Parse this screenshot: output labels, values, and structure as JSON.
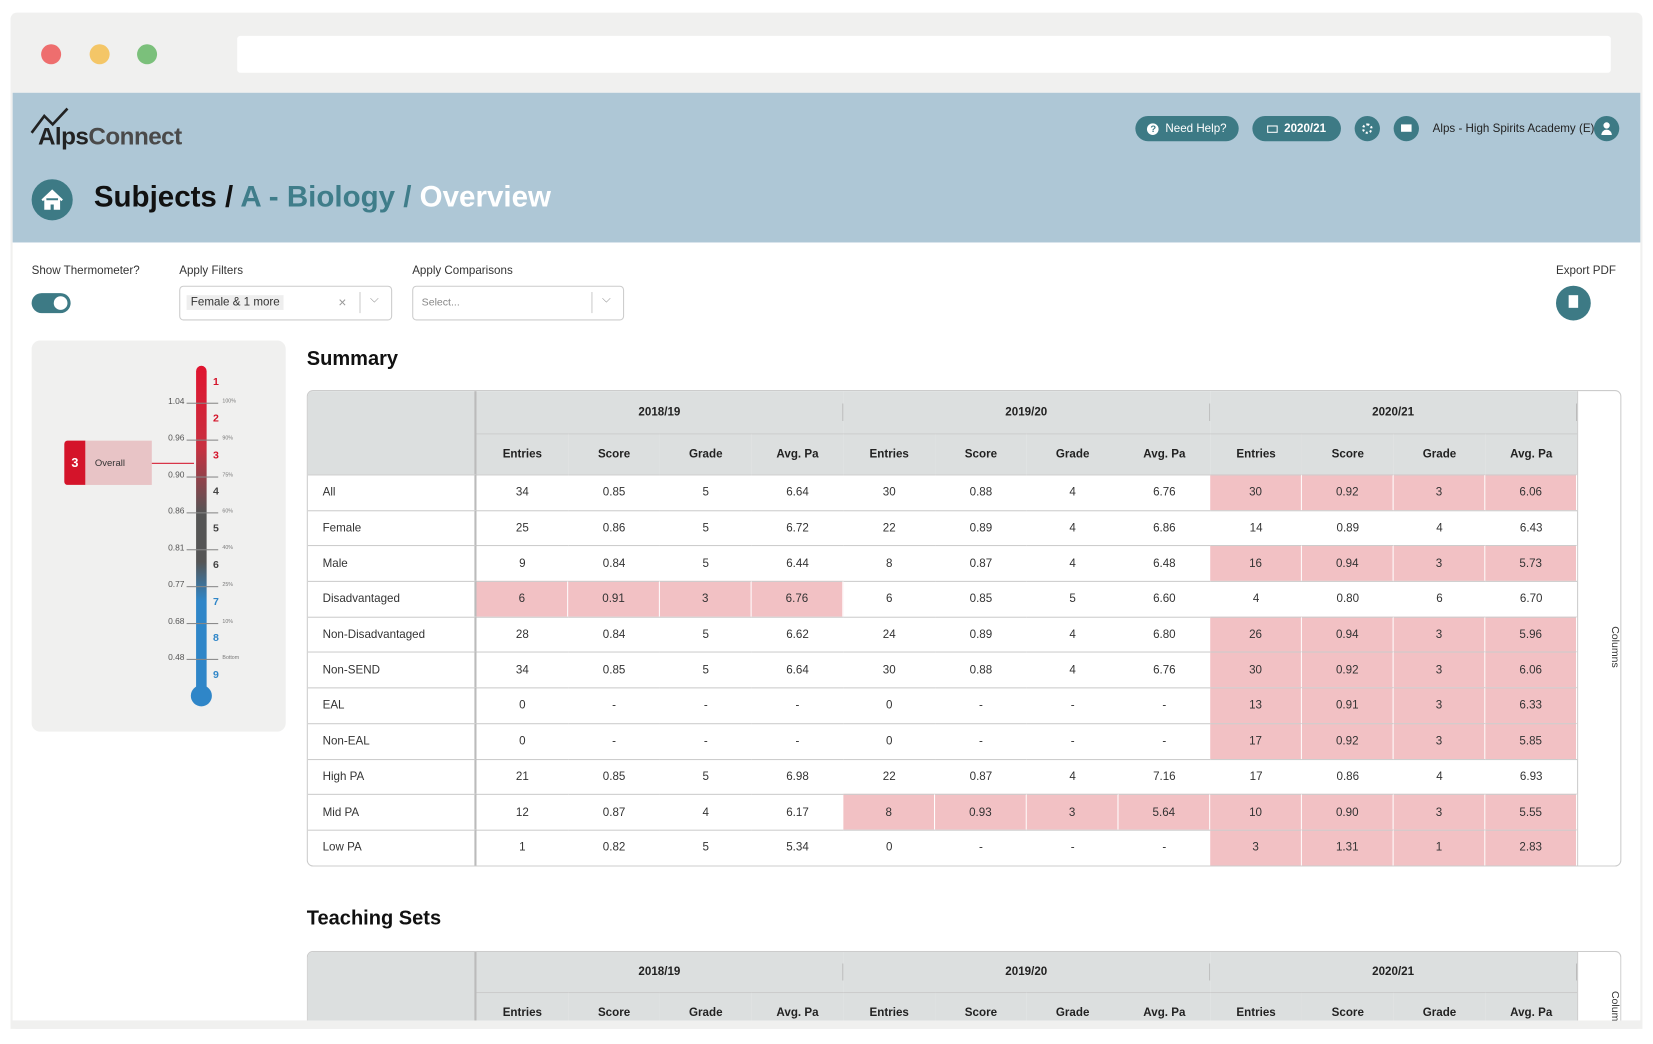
{
  "header": {
    "logo_alps": "Alps",
    "logo_connect": "Connect",
    "help": "Need Help?",
    "year": "2020/21",
    "school": "Alps - High Spirits Academy (E)"
  },
  "breadcrumb": [
    "Subjects",
    "A - Biology",
    "Overview"
  ],
  "controls": {
    "thermometer_label": "Show Thermometer?",
    "filters_label": "Apply Filters",
    "filters_value": "Female & 1 more",
    "comparisons_label": "Apply Comparisons",
    "comparisons_placeholder": "Select...",
    "export_label": "Export PDF"
  },
  "thermometer": {
    "grades": [
      "1",
      "2",
      "3",
      "4",
      "5",
      "6",
      "7",
      "8",
      "9"
    ],
    "scores": [
      "1.04",
      "0.96",
      "0.90",
      "0.86",
      "0.81",
      "0.77",
      "0.68",
      "0.48"
    ],
    "percentiles": [
      "100%",
      "90%",
      "75%",
      "60%",
      "40%",
      "25%",
      "10%",
      "Bottom"
    ],
    "overall_grade": "3",
    "overall_label": "Overall"
  },
  "summary": {
    "title": "Summary",
    "years": [
      "2018/19",
      "2019/20",
      "2020/21"
    ],
    "columns": [
      "Entries",
      "Score",
      "Grade",
      "Avg. Pa"
    ],
    "side": "Columns",
    "highlight_color": "#f2c1c4",
    "rows": [
      {
        "label": "All",
        "cells": [
          "34",
          "0.85",
          "5",
          "6.64",
          "30",
          "0.88",
          "4",
          "6.76",
          "30",
          "0.92",
          "3",
          "6.06"
        ],
        "highlight": [
          false,
          false,
          true
        ]
      },
      {
        "label": "Female",
        "cells": [
          "25",
          "0.86",
          "5",
          "6.72",
          "22",
          "0.89",
          "4",
          "6.86",
          "14",
          "0.89",
          "4",
          "6.43"
        ],
        "highlight": [
          false,
          false,
          false
        ]
      },
      {
        "label": "Male",
        "cells": [
          "9",
          "0.84",
          "5",
          "6.44",
          "8",
          "0.87",
          "4",
          "6.48",
          "16",
          "0.94",
          "3",
          "5.73"
        ],
        "highlight": [
          false,
          false,
          true
        ]
      },
      {
        "label": "Disadvantaged",
        "cells": [
          "6",
          "0.91",
          "3",
          "6.76",
          "6",
          "0.85",
          "5",
          "6.60",
          "4",
          "0.80",
          "6",
          "6.70"
        ],
        "highlight": [
          true,
          false,
          false
        ]
      },
      {
        "label": "Non-Disadvantaged",
        "cells": [
          "28",
          "0.84",
          "5",
          "6.62",
          "24",
          "0.89",
          "4",
          "6.80",
          "26",
          "0.94",
          "3",
          "5.96"
        ],
        "highlight": [
          false,
          false,
          true
        ]
      },
      {
        "label": "Non-SEND",
        "cells": [
          "34",
          "0.85",
          "5",
          "6.64",
          "30",
          "0.88",
          "4",
          "6.76",
          "30",
          "0.92",
          "3",
          "6.06"
        ],
        "highlight": [
          false,
          false,
          true
        ]
      },
      {
        "label": "EAL",
        "cells": [
          "0",
          "-",
          "-",
          "-",
          "0",
          "-",
          "-",
          "-",
          "13",
          "0.91",
          "3",
          "6.33"
        ],
        "highlight": [
          false,
          false,
          true
        ]
      },
      {
        "label": "Non-EAL",
        "cells": [
          "0",
          "-",
          "-",
          "-",
          "0",
          "-",
          "-",
          "-",
          "17",
          "0.92",
          "3",
          "5.85"
        ],
        "highlight": [
          false,
          false,
          true
        ]
      },
      {
        "label": "High PA",
        "cells": [
          "21",
          "0.85",
          "5",
          "6.98",
          "22",
          "0.87",
          "4",
          "7.16",
          "17",
          "0.86",
          "4",
          "6.93"
        ],
        "highlight": [
          false,
          false,
          false
        ]
      },
      {
        "label": "Mid PA",
        "cells": [
          "12",
          "0.87",
          "4",
          "6.17",
          "8",
          "0.93",
          "3",
          "5.64",
          "10",
          "0.90",
          "3",
          "5.55"
        ],
        "highlight": [
          false,
          true,
          true
        ]
      },
      {
        "label": "Low PA",
        "cells": [
          "1",
          "0.82",
          "5",
          "5.34",
          "0",
          "-",
          "-",
          "-",
          "3",
          "1.31",
          "1",
          "2.83"
        ],
        "highlight": [
          false,
          false,
          true
        ]
      }
    ]
  },
  "teaching_sets": {
    "title": "Teaching Sets",
    "years": [
      "2018/19",
      "2019/20",
      "2020/21"
    ],
    "columns": [
      "Entries",
      "Score",
      "Grade",
      "Avg. Pa"
    ],
    "side": "Columns"
  }
}
